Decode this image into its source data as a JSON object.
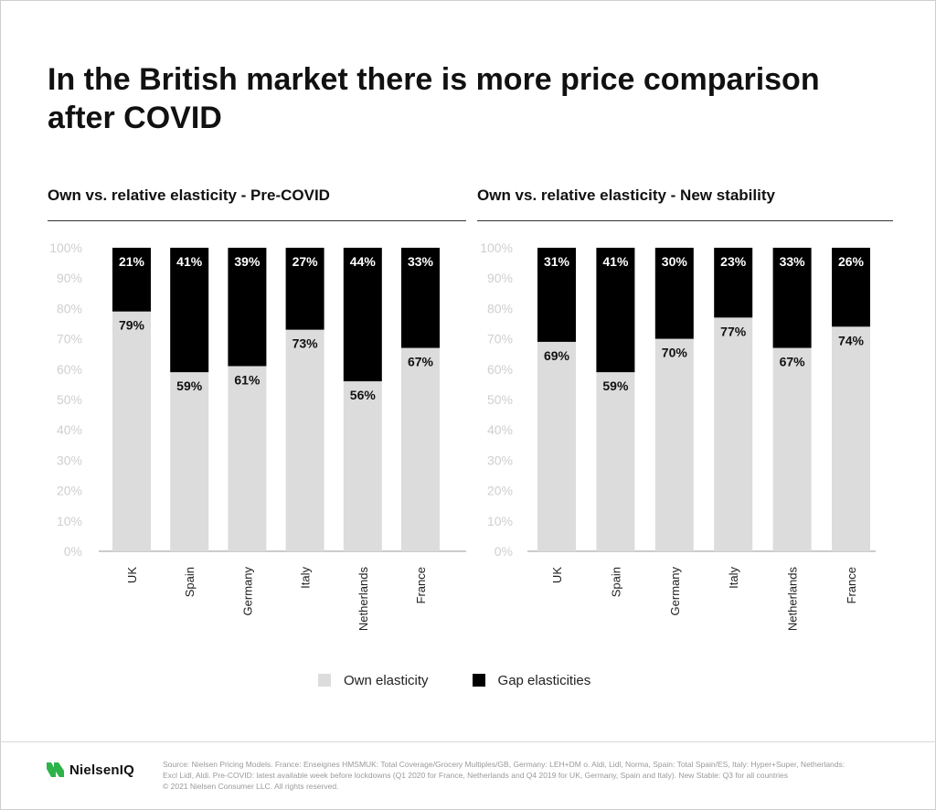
{
  "title": "In the British market there is more price comparison after COVID",
  "charts": {
    "left": {
      "title": "Own vs. relative elasticity - Pre-COVID"
    },
    "right": {
      "title": "Own vs. relative elasticity - New stability"
    }
  },
  "legend": {
    "own": "Own elasticity",
    "gap": "Gap elasticities"
  },
  "colors": {
    "own": "#dcdcdc",
    "gap": "#000000",
    "axis_text": "#cfcfcf",
    "text": "#111111"
  },
  "footer": {
    "brand": "NielsenIQ",
    "brand_icon": "nielseniq-logo-icon",
    "source_lines": [
      "Source: Nielsen Pricing Models. France: Enseignes HMSMUK: Total Coverage/Grocery Multiples/GB, Germany: LEH+DM o. Aldi, Lidl, Norma, Spain: Total Spain/ES, Italy: Hyper+Super, Netherlands:",
      "Excl Lidl, Aldi. Pre-COVID: latest available week before lockdowns (Q1 2020 for France, Netherlands and Q4 2019 for UK, Germany, Spain and Italy). New Stable: Q3 for all countries",
      "© 2021 Nielsen Consumer LLC. All rights reserved."
    ]
  },
  "chart_data": [
    {
      "type": "bar",
      "stacked": true,
      "title": "Own vs. relative elasticity - Pre-COVID",
      "categories": [
        "UK",
        "Spain",
        "Germany",
        "Italy",
        "Netherlands",
        "France"
      ],
      "series": [
        {
          "name": "Own elasticity",
          "values": [
            79,
            59,
            61,
            73,
            56,
            67
          ],
          "labels": [
            "79%",
            "59%",
            "61%",
            "73%",
            "56%",
            "67%"
          ]
        },
        {
          "name": "Gap elasticities",
          "values": [
            21,
            41,
            39,
            27,
            44,
            33
          ],
          "labels": [
            "21%",
            "41%",
            "39%",
            "27%",
            "44%",
            "33%"
          ]
        }
      ],
      "yticks": [
        "0%",
        "10%",
        "20%",
        "30%",
        "40%",
        "50%",
        "60%",
        "70%",
        "80%",
        "90%",
        "100%"
      ],
      "ylim": [
        0,
        100
      ],
      "grid": false
    },
    {
      "type": "bar",
      "stacked": true,
      "title": "Own vs. relative elasticity - New stability",
      "categories": [
        "UK",
        "Spain",
        "Germany",
        "Italy",
        "Netherlands",
        "France"
      ],
      "series": [
        {
          "name": "Own elasticity",
          "values": [
            69,
            59,
            70,
            77,
            67,
            74
          ],
          "labels": [
            "69%",
            "59%",
            "70%",
            "77%",
            "67%",
            "74%"
          ]
        },
        {
          "name": "Gap elasticities",
          "values": [
            31,
            41,
            30,
            23,
            33,
            26
          ],
          "labels": [
            "31%",
            "41%",
            "30%",
            "23%",
            "33%",
            "26%"
          ]
        }
      ],
      "yticks": [
        "0%",
        "10%",
        "20%",
        "30%",
        "40%",
        "50%",
        "60%",
        "70%",
        "80%",
        "90%",
        "100%"
      ],
      "ylim": [
        0,
        100
      ],
      "grid": false
    }
  ]
}
